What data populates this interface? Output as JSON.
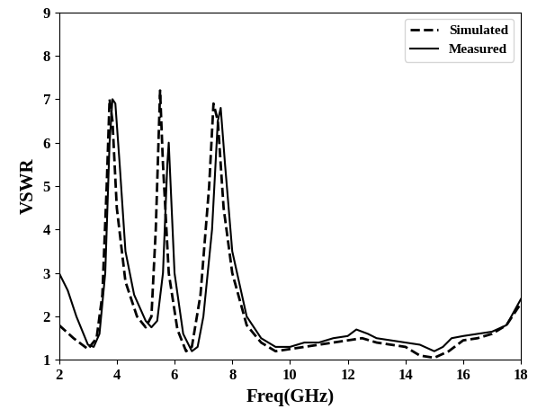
{
  "chart_data": {
    "type": "line",
    "x_label": "Freq(GHz)",
    "y_label": "VSWR",
    "series": [
      {
        "name": "Simulated",
        "color": "#000000",
        "line_style": "dashed",
        "x": [
          2,
          2.5,
          3.0,
          3.3,
          3.5,
          3.65,
          3.75,
          3.85,
          4.0,
          4.3,
          4.7,
          5.0,
          5.2,
          5.35,
          5.5,
          5.6,
          5.8,
          6.1,
          6.4,
          6.6,
          6.9,
          7.2,
          7.35,
          7.5,
          7.7,
          8.0,
          8.5,
          9.0,
          9.5,
          10,
          11,
          12,
          12.5,
          13,
          14,
          14.5,
          15,
          15.5,
          16,
          16.5,
          17,
          17.5,
          18
        ],
        "values": [
          1.8,
          1.5,
          1.25,
          1.5,
          2.5,
          5.0,
          7.0,
          6.5,
          4.5,
          2.8,
          2.0,
          1.75,
          2.0,
          4.0,
          7.2,
          5.5,
          3.0,
          1.7,
          1.2,
          1.3,
          2.5,
          5.0,
          6.9,
          6.5,
          4.5,
          3.0,
          1.8,
          1.4,
          1.2,
          1.25,
          1.35,
          1.45,
          1.5,
          1.4,
          1.3,
          1.1,
          1.05,
          1.2,
          1.45,
          1.5,
          1.6,
          1.8,
          2.3
        ]
      },
      {
        "name": "Measured",
        "color": "#000000",
        "line_style": "solid",
        "x": [
          2,
          2.3,
          2.6,
          3.0,
          3.2,
          3.4,
          3.6,
          3.75,
          3.85,
          3.95,
          4.1,
          4.3,
          4.6,
          5.0,
          5.2,
          5.4,
          5.6,
          5.75,
          5.8,
          5.9,
          6.0,
          6.3,
          6.6,
          6.8,
          7.0,
          7.3,
          7.5,
          7.6,
          7.75,
          8.0,
          8.5,
          9.0,
          9.5,
          10,
          10.5,
          11,
          11.5,
          12,
          12.3,
          12.7,
          13,
          13.5,
          14,
          14.5,
          15,
          15.3,
          15.6,
          16,
          16.5,
          17,
          17.5,
          18
        ],
        "values": [
          3.0,
          2.6,
          2.0,
          1.35,
          1.3,
          1.6,
          3.0,
          6.0,
          7.0,
          6.9,
          5.5,
          3.5,
          2.5,
          1.9,
          1.75,
          1.9,
          3.0,
          5.5,
          6.0,
          4.5,
          3.0,
          1.6,
          1.2,
          1.3,
          2.0,
          4.0,
          6.5,
          6.8,
          5.5,
          3.5,
          2.0,
          1.5,
          1.3,
          1.3,
          1.4,
          1.4,
          1.5,
          1.55,
          1.7,
          1.6,
          1.5,
          1.45,
          1.4,
          1.35,
          1.2,
          1.3,
          1.5,
          1.55,
          1.6,
          1.65,
          1.8,
          2.4
        ]
      }
    ],
    "xlim": [
      2,
      18
    ],
    "xticks": [
      2,
      4,
      6,
      8,
      10,
      12,
      14,
      16,
      18
    ],
    "ylim": [
      1,
      9
    ],
    "yticks": [
      1,
      2,
      3,
      4,
      5,
      6,
      7,
      8,
      9
    ],
    "grid": false,
    "legend": "upper right"
  }
}
